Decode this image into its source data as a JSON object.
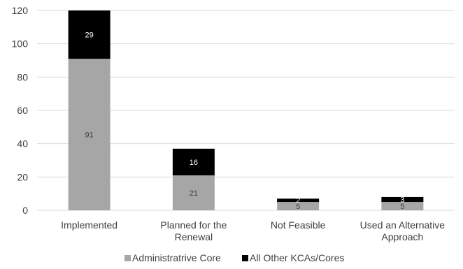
{
  "chart_data": {
    "type": "bar",
    "stacked": true,
    "categories": [
      [
        "Implemented"
      ],
      [
        "Planned for the",
        "Renewal"
      ],
      [
        "Not Feasible"
      ],
      [
        "Used an Alternative",
        "Approach"
      ]
    ],
    "series": [
      {
        "name": "Administratrive Core",
        "values": [
          91,
          21,
          5,
          5
        ],
        "color": "#a6a6a6",
        "label_color": "#404040"
      },
      {
        "name": "All Other KCAs/Cores",
        "values": [
          29,
          16,
          2,
          3
        ],
        "color": "#000000",
        "label_color": "#ffffff"
      }
    ],
    "ylim": [
      0,
      120
    ],
    "yticks": [
      0,
      20,
      40,
      60,
      80,
      100,
      120
    ],
    "grid": true,
    "legend": "bottom"
  }
}
